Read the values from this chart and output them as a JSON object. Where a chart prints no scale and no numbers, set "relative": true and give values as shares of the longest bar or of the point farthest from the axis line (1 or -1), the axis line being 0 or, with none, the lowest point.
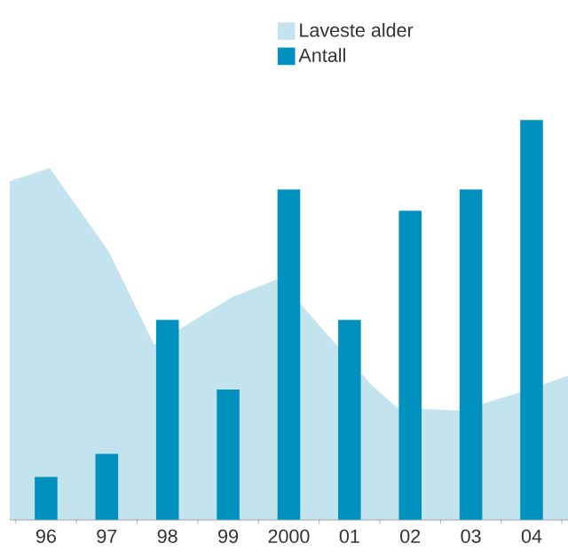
{
  "chart_data": {
    "type": "bar",
    "relative": true,
    "x": [
      1996,
      1997,
      1998,
      1999,
      2000,
      2001,
      2002,
      2003,
      2004
    ],
    "xlim": [
      1995.4,
      2004.6
    ],
    "xticks": [
      {
        "value": 1995.5,
        "label": null
      },
      {
        "value": 1996,
        "label": "96"
      },
      {
        "value": 1996.5,
        "label": null
      },
      {
        "value": 1997,
        "label": "97"
      },
      {
        "value": 1997.5,
        "label": null
      },
      {
        "value": 1998,
        "label": "98"
      },
      {
        "value": 1998.5,
        "label": null
      },
      {
        "value": 1999,
        "label": "99"
      },
      {
        "value": 1999.5,
        "label": null
      },
      {
        "value": 2000,
        "label": "2000"
      },
      {
        "value": 2000.5,
        "label": null
      },
      {
        "value": 2001,
        "label": "01"
      },
      {
        "value": 2001.5,
        "label": null
      },
      {
        "value": 2002,
        "label": "02"
      },
      {
        "value": 2002.5,
        "label": null
      },
      {
        "value": 2003,
        "label": "03"
      },
      {
        "value": 2003.5,
        "label": null
      },
      {
        "value": 2004,
        "label": "04"
      },
      {
        "value": 2004.5,
        "label": null
      }
    ],
    "series": [
      {
        "name": "Laveste alder",
        "type": "area",
        "color": "#c3e3ef",
        "x": [
          1995.4,
          1996.06,
          1997.04,
          1997.78,
          1999.08,
          1999.83,
          2001.35,
          2001.78,
          2002.82,
          2003.8,
          2004.6
        ],
        "values": [
          0.847,
          0.88,
          0.669,
          0.438,
          0.558,
          0.603,
          0.339,
          0.281,
          0.273,
          0.318,
          0.36
        ]
      },
      {
        "name": "Antall",
        "color": "#0091bf",
        "values": [
          0.107,
          0.165,
          0.5,
          0.326,
          0.826,
          0.5,
          0.773,
          0.826,
          1
        ]
      }
    ],
    "legend": "top right"
  }
}
